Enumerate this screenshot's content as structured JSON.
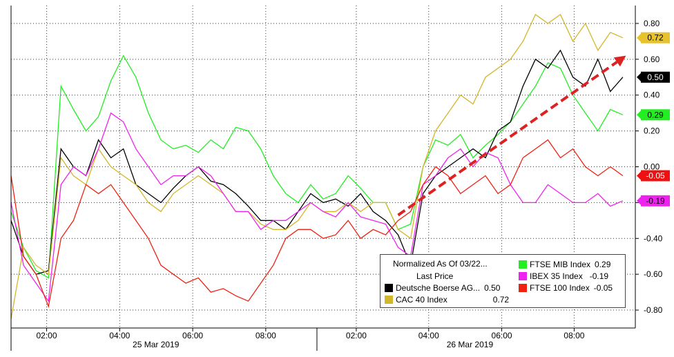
{
  "chart_data": {
    "type": "line",
    "title": "",
    "ylim": [
      -0.9,
      0.9
    ],
    "yticks": [
      -0.8,
      -0.6,
      -0.4,
      -0.2,
      0.0,
      0.2,
      0.4,
      0.6,
      0.8
    ],
    "ytick_labels": [
      "-0.80",
      "-0.60",
      "-0.40",
      "-0.20",
      "0.00",
      "0.20",
      "0.40",
      "0.60",
      "0.80"
    ],
    "x_tick_labels": [
      "02:00",
      "04:00",
      "06:00",
      "08:00",
      "02:00",
      "04:00",
      "06:00",
      "08:00"
    ],
    "date_labels": [
      "25 Mar 2019",
      "26 Mar 2019"
    ],
    "grid": true,
    "legend": {
      "title": "Normalized As Of 03/22...",
      "subtitle": "Last Price",
      "entries": [
        {
          "name": "Deutsche Boerse AG...",
          "value": "0.50",
          "color": "#000000"
        },
        {
          "name": "CAC 40 Index",
          "value": "0.72",
          "color": "#d4b62a"
        },
        {
          "name": "FTSE MIB Index",
          "value": "0.29",
          "color": "#22ee22"
        },
        {
          "name": "IBEX 35 Index",
          "value": "-0.19",
          "color": "#ee22ee"
        },
        {
          "name": "FTSE 100 Index",
          "value": "-0.05",
          "color": "#ee2211"
        }
      ]
    },
    "badges": [
      {
        "label": "0.72",
        "value": 0.72,
        "bg": "#e6c22e",
        "fg": "#000000"
      },
      {
        "label": "0.50",
        "value": 0.5,
        "bg": "#000000",
        "fg": "#ffffff"
      },
      {
        "label": "0.29",
        "value": 0.29,
        "bg": "#22ee22",
        "fg": "#000000"
      },
      {
        "label": "-0.05",
        "value": -0.05,
        "bg": "#ee1111",
        "fg": "#ffffff"
      },
      {
        "label": "-0.19",
        "value": -0.19,
        "bg": "#ee22ee",
        "fg": "#000000"
      }
    ],
    "trend_arrow": {
      "from": [
        0.62,
        -0.27
      ],
      "to": [
        0.985,
        0.62
      ],
      "color": "#dd2222"
    },
    "x_domain": [
      0,
      1
    ],
    "series": [
      {
        "name": "FTSE MIB Index",
        "color": "#22ee22",
        "x": [
          0,
          0.02,
          0.04,
          0.06,
          0.08,
          0.1,
          0.12,
          0.14,
          0.16,
          0.18,
          0.2,
          0.22,
          0.24,
          0.26,
          0.28,
          0.3,
          0.32,
          0.34,
          0.36,
          0.38,
          0.4,
          0.42,
          0.44,
          0.46,
          0.48,
          0.5,
          0.52,
          0.54,
          0.56,
          0.58,
          0.6,
          0.62,
          0.64,
          0.66,
          0.68,
          0.7,
          0.72,
          0.74,
          0.76,
          0.78,
          0.8,
          0.82,
          0.84,
          0.86,
          0.88,
          0.9,
          0.92,
          0.94,
          0.96,
          0.98
        ],
        "y": [
          -0.25,
          -0.45,
          -0.58,
          -0.62,
          0.45,
          0.32,
          0.2,
          0.28,
          0.48,
          0.62,
          0.5,
          0.3,
          0.15,
          0.1,
          0.12,
          0.08,
          0.15,
          0.1,
          0.22,
          0.2,
          0.1,
          -0.05,
          -0.15,
          -0.2,
          -0.1,
          -0.18,
          -0.15,
          -0.05,
          -0.12,
          -0.2,
          -0.2,
          -0.35,
          -0.32,
          0.0,
          0.15,
          0.12,
          0.18,
          0.05,
          0.12,
          0.18,
          0.25,
          0.35,
          0.45,
          0.58,
          0.55,
          0.4,
          0.3,
          0.2,
          0.32,
          0.29
        ]
      },
      {
        "name": "Deutsche Boerse AG...",
        "color": "#000000",
        "x": [
          0,
          0.02,
          0.04,
          0.06,
          0.08,
          0.1,
          0.12,
          0.14,
          0.16,
          0.18,
          0.2,
          0.22,
          0.24,
          0.26,
          0.28,
          0.3,
          0.32,
          0.34,
          0.36,
          0.38,
          0.4,
          0.42,
          0.44,
          0.46,
          0.48,
          0.5,
          0.52,
          0.54,
          0.56,
          0.58,
          0.6,
          0.62,
          0.64,
          0.66,
          0.68,
          0.7,
          0.72,
          0.74,
          0.76,
          0.78,
          0.8,
          0.82,
          0.84,
          0.86,
          0.88,
          0.9,
          0.92,
          0.94,
          0.96,
          0.98
        ],
        "y": [
          -0.3,
          -0.5,
          -0.6,
          -0.58,
          0.1,
          0.0,
          -0.05,
          0.15,
          0.05,
          0.1,
          -0.1,
          -0.15,
          -0.2,
          -0.12,
          -0.05,
          0.0,
          -0.08,
          -0.1,
          -0.15,
          -0.22,
          -0.3,
          -0.3,
          -0.35,
          -0.25,
          -0.15,
          -0.2,
          -0.18,
          -0.22,
          -0.15,
          -0.25,
          -0.3,
          -0.38,
          -0.55,
          -0.15,
          -0.05,
          0.0,
          0.05,
          0.1,
          0.05,
          0.2,
          0.25,
          0.45,
          0.6,
          0.55,
          0.65,
          0.5,
          0.45,
          0.6,
          0.42,
          0.5
        ]
      },
      {
        "name": "CAC 40 Index",
        "color": "#d4b62a",
        "x": [
          0,
          0.02,
          0.04,
          0.06,
          0.08,
          0.1,
          0.12,
          0.14,
          0.16,
          0.18,
          0.2,
          0.22,
          0.24,
          0.26,
          0.28,
          0.3,
          0.32,
          0.34,
          0.36,
          0.38,
          0.4,
          0.42,
          0.44,
          0.46,
          0.48,
          0.5,
          0.52,
          0.54,
          0.56,
          0.58,
          0.6,
          0.62,
          0.64,
          0.66,
          0.68,
          0.7,
          0.72,
          0.74,
          0.76,
          0.78,
          0.8,
          0.82,
          0.84,
          0.86,
          0.88,
          0.9,
          0.92,
          0.94,
          0.96,
          0.98
        ],
        "y": [
          -0.85,
          -0.45,
          -0.55,
          -0.6,
          0.05,
          -0.05,
          -0.1,
          0.1,
          0.0,
          -0.05,
          -0.1,
          -0.2,
          -0.25,
          -0.15,
          -0.1,
          -0.05,
          -0.1,
          -0.15,
          -0.25,
          -0.25,
          -0.32,
          -0.35,
          -0.35,
          -0.3,
          -0.2,
          -0.25,
          -0.25,
          -0.2,
          -0.25,
          -0.2,
          -0.2,
          -0.35,
          -0.4,
          0.0,
          0.2,
          0.3,
          0.4,
          0.35,
          0.5,
          0.55,
          0.6,
          0.7,
          0.85,
          0.8,
          0.85,
          0.7,
          0.8,
          0.65,
          0.75,
          0.72
        ]
      },
      {
        "name": "IBEX 35 Index",
        "color": "#ee22ee",
        "x": [
          0,
          0.02,
          0.04,
          0.06,
          0.08,
          0.1,
          0.12,
          0.14,
          0.16,
          0.18,
          0.2,
          0.22,
          0.24,
          0.26,
          0.28,
          0.3,
          0.32,
          0.34,
          0.36,
          0.38,
          0.4,
          0.42,
          0.44,
          0.46,
          0.48,
          0.5,
          0.52,
          0.54,
          0.56,
          0.58,
          0.6,
          0.62,
          0.64,
          0.66,
          0.68,
          0.7,
          0.72,
          0.74,
          0.76,
          0.78,
          0.8,
          0.82,
          0.84,
          0.86,
          0.88,
          0.9,
          0.92,
          0.94,
          0.96,
          0.98
        ],
        "y": [
          -0.2,
          -0.55,
          -0.65,
          -0.75,
          -0.1,
          0.0,
          -0.05,
          0.1,
          0.3,
          0.25,
          0.1,
          0.0,
          -0.1,
          -0.05,
          -0.05,
          0.0,
          -0.05,
          -0.15,
          -0.25,
          -0.25,
          -0.35,
          -0.3,
          -0.3,
          -0.25,
          -0.2,
          -0.25,
          -0.28,
          -0.2,
          -0.28,
          -0.3,
          -0.32,
          -0.45,
          -0.5,
          -0.1,
          -0.05,
          0.05,
          0.1,
          0.0,
          0.08,
          0.05,
          -0.1,
          -0.2,
          -0.2,
          -0.1,
          -0.15,
          -0.2,
          -0.2,
          -0.15,
          -0.22,
          -0.19
        ]
      },
      {
        "name": "FTSE 100 Index",
        "color": "#ee2211",
        "x": [
          0,
          0.02,
          0.04,
          0.06,
          0.08,
          0.1,
          0.12,
          0.14,
          0.16,
          0.18,
          0.2,
          0.22,
          0.24,
          0.26,
          0.28,
          0.3,
          0.32,
          0.34,
          0.36,
          0.38,
          0.4,
          0.42,
          0.44,
          0.46,
          0.48,
          0.5,
          0.52,
          0.54,
          0.56,
          0.58,
          0.6,
          0.62,
          0.64,
          0.66,
          0.68,
          0.7,
          0.72,
          0.74,
          0.76,
          0.78,
          0.8,
          0.82,
          0.84,
          0.86,
          0.88,
          0.9,
          0.92,
          0.94,
          0.96,
          0.98
        ],
        "y": [
          -0.05,
          -0.5,
          -0.6,
          -0.78,
          -0.4,
          -0.3,
          -0.1,
          -0.15,
          -0.1,
          -0.2,
          -0.3,
          -0.4,
          -0.55,
          -0.6,
          -0.65,
          -0.62,
          -0.7,
          -0.68,
          -0.72,
          -0.75,
          -0.65,
          -0.55,
          -0.4,
          -0.35,
          -0.35,
          -0.4,
          -0.38,
          -0.3,
          -0.4,
          -0.35,
          -0.38,
          -0.3,
          -0.25,
          -0.1,
          0.0,
          -0.05,
          -0.15,
          -0.1,
          -0.05,
          -0.15,
          -0.1,
          0.05,
          0.1,
          0.15,
          0.05,
          0.1,
          0.0,
          -0.05,
          0.0,
          -0.05
        ]
      }
    ]
  }
}
